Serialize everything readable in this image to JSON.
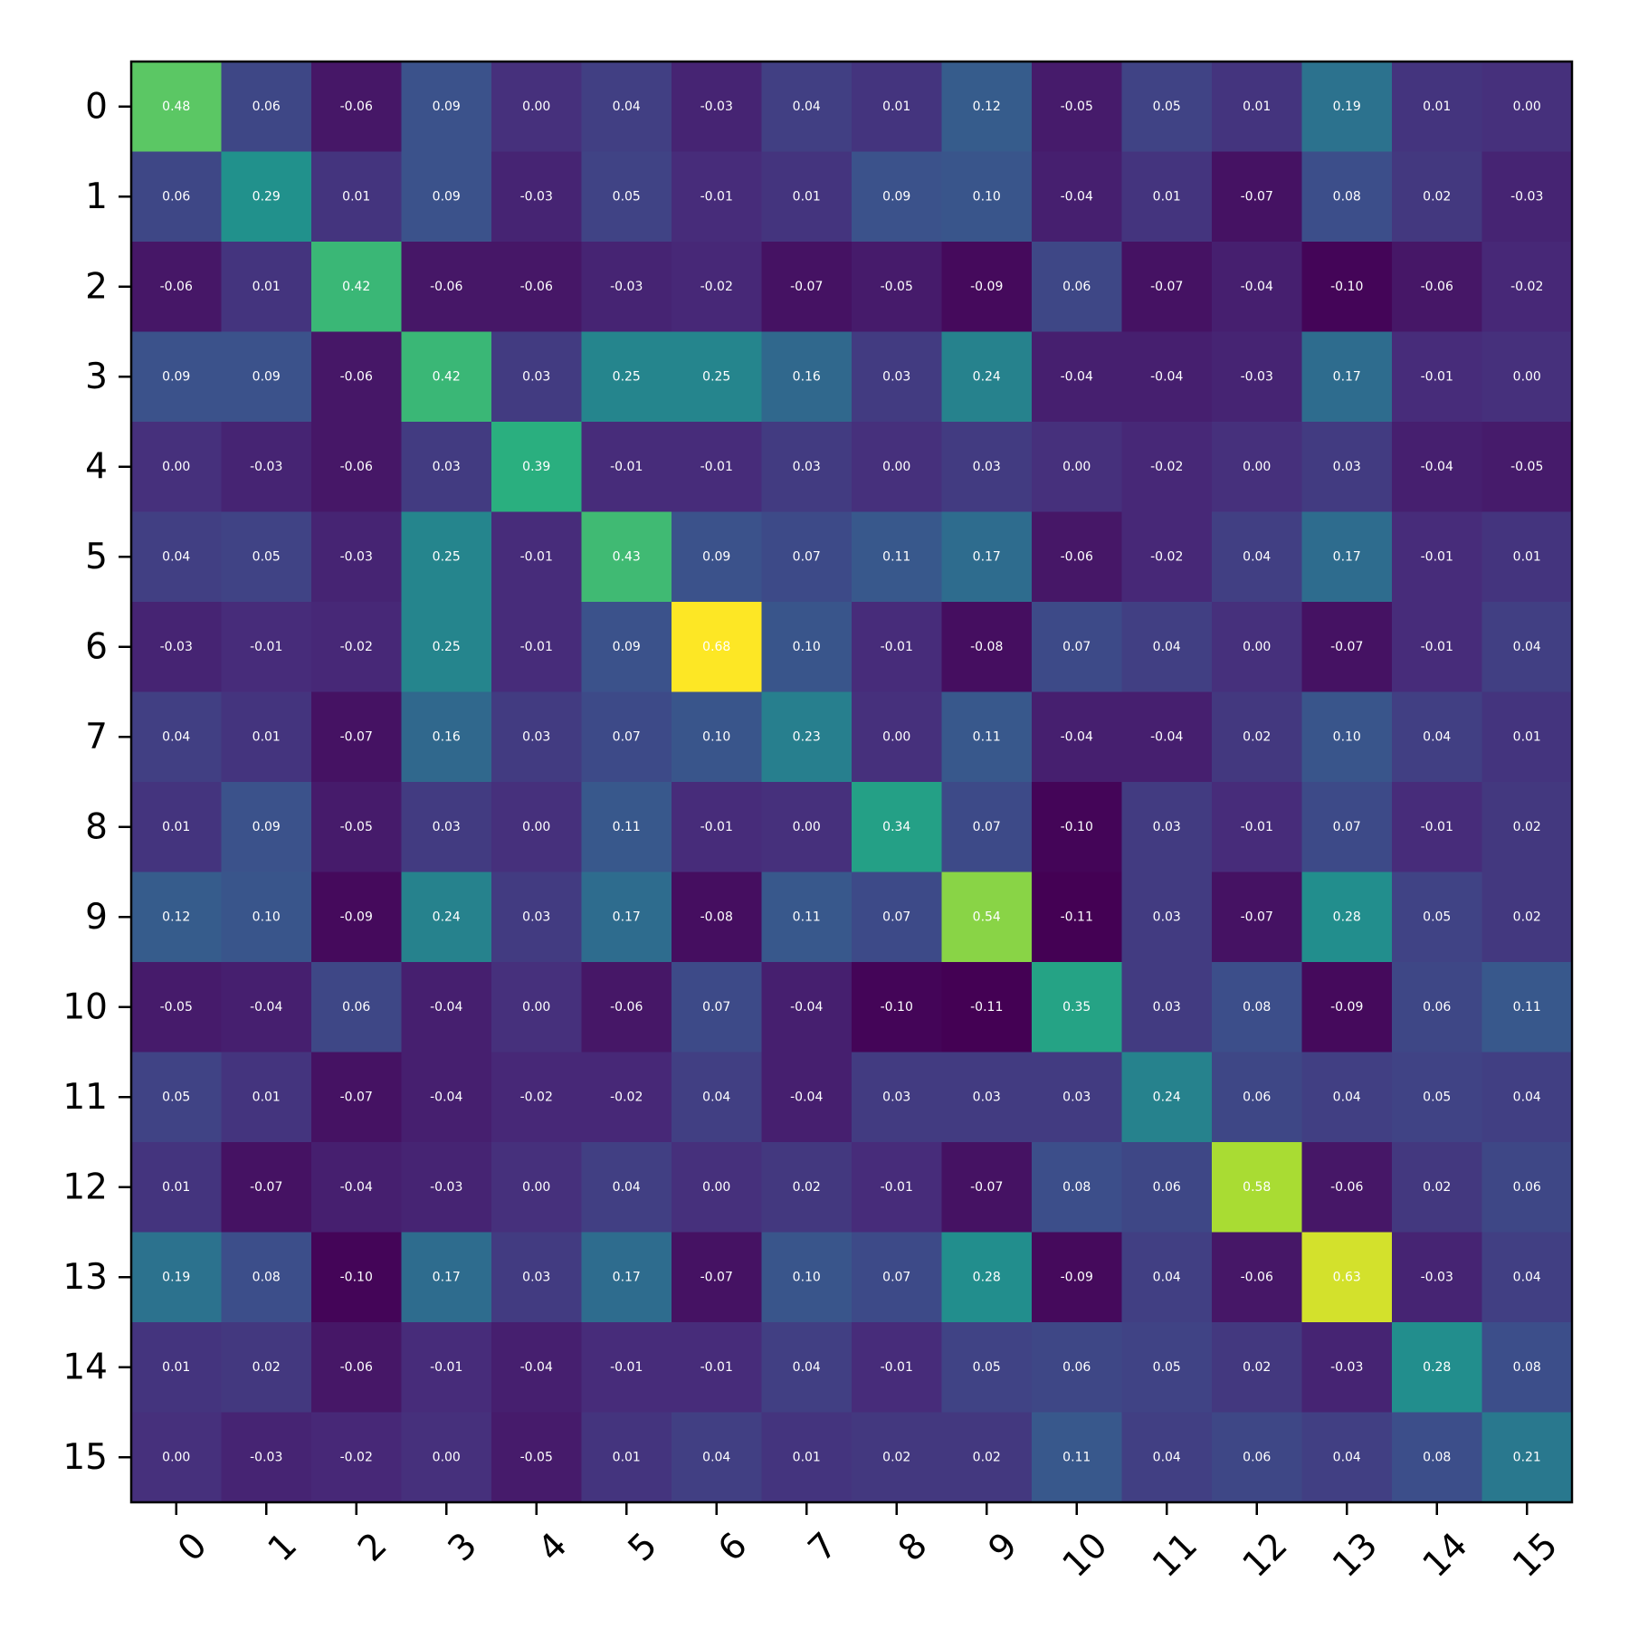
{
  "chart_data": {
    "type": "heatmap",
    "title": "",
    "xlabel": "",
    "ylabel": "",
    "x_tick_labels": [
      "0",
      "1",
      "2",
      "3",
      "4",
      "5",
      "6",
      "7",
      "8",
      "9",
      "10",
      "11",
      "12",
      "13",
      "14",
      "15"
    ],
    "y_tick_labels": [
      "0",
      "1",
      "2",
      "3",
      "4",
      "5",
      "6",
      "7",
      "8",
      "9",
      "10",
      "11",
      "12",
      "13",
      "14",
      "15"
    ],
    "colormap": "viridis",
    "color_range": [
      -0.11,
      0.68
    ],
    "cell_text_color": "#ffffff",
    "x_tick_rotation_deg": 45,
    "matrix": [
      [
        0.48,
        0.06,
        -0.06,
        0.09,
        0.0,
        0.04,
        -0.03,
        0.04,
        0.01,
        0.12,
        -0.05,
        0.05,
        0.01,
        0.19,
        0.01,
        0.0
      ],
      [
        0.06,
        0.29,
        0.01,
        0.09,
        -0.03,
        0.05,
        -0.01,
        0.01,
        0.09,
        0.1,
        -0.04,
        0.01,
        -0.07,
        0.08,
        0.02,
        -0.03
      ],
      [
        -0.06,
        0.01,
        0.42,
        -0.06,
        -0.06,
        -0.03,
        -0.02,
        -0.07,
        -0.05,
        -0.09,
        0.06,
        -0.07,
        -0.04,
        -0.1,
        -0.06,
        -0.02
      ],
      [
        0.09,
        0.09,
        -0.06,
        0.42,
        0.03,
        0.25,
        0.25,
        0.16,
        0.03,
        0.24,
        -0.04,
        -0.04,
        -0.03,
        0.17,
        -0.01,
        -0.0
      ],
      [
        0.0,
        -0.03,
        -0.06,
        0.03,
        0.39,
        -0.01,
        -0.01,
        0.03,
        -0.0,
        0.03,
        0.0,
        -0.02,
        -0.0,
        0.03,
        -0.04,
        -0.05
      ],
      [
        0.04,
        0.05,
        -0.03,
        0.25,
        -0.01,
        0.43,
        0.09,
        0.07,
        0.11,
        0.17,
        -0.06,
        -0.02,
        0.04,
        0.17,
        -0.01,
        0.01
      ],
      [
        -0.03,
        -0.01,
        -0.02,
        0.25,
        -0.01,
        0.09,
        0.68,
        0.1,
        -0.01,
        -0.08,
        0.07,
        0.04,
        0.0,
        -0.07,
        -0.01,
        0.04
      ],
      [
        0.04,
        0.01,
        -0.07,
        0.16,
        0.03,
        0.07,
        0.1,
        0.23,
        0.0,
        0.11,
        -0.04,
        -0.04,
        0.02,
        0.1,
        0.04,
        0.01
      ],
      [
        0.01,
        0.09,
        -0.05,
        0.03,
        -0.0,
        0.11,
        -0.01,
        0.0,
        0.34,
        0.07,
        -0.1,
        0.03,
        -0.01,
        0.07,
        -0.01,
        0.02
      ],
      [
        0.12,
        0.1,
        -0.09,
        0.24,
        0.03,
        0.17,
        -0.08,
        0.11,
        0.07,
        0.54,
        -0.11,
        0.03,
        -0.07,
        0.28,
        0.05,
        0.02
      ],
      [
        -0.05,
        -0.04,
        0.06,
        -0.04,
        0.0,
        -0.06,
        0.07,
        -0.04,
        -0.1,
        -0.11,
        0.35,
        0.03,
        0.08,
        -0.09,
        0.06,
        0.11
      ],
      [
        0.05,
        0.01,
        -0.07,
        -0.04,
        -0.02,
        -0.02,
        0.04,
        -0.04,
        0.03,
        0.03,
        0.03,
        0.24,
        0.06,
        0.04,
        0.05,
        0.04
      ],
      [
        0.01,
        -0.07,
        -0.04,
        -0.03,
        -0.0,
        0.04,
        0.0,
        0.02,
        -0.01,
        -0.07,
        0.08,
        0.06,
        0.58,
        -0.06,
        0.02,
        0.06
      ],
      [
        0.19,
        0.08,
        -0.1,
        0.17,
        0.03,
        0.17,
        -0.07,
        0.1,
        0.07,
        0.28,
        -0.09,
        0.04,
        -0.06,
        0.63,
        -0.03,
        0.04
      ],
      [
        0.01,
        0.02,
        -0.06,
        -0.01,
        -0.04,
        -0.01,
        -0.01,
        0.04,
        -0.01,
        0.05,
        0.06,
        0.05,
        0.02,
        -0.03,
        0.28,
        0.08
      ],
      [
        0.0,
        -0.03,
        -0.02,
        -0.0,
        -0.05,
        0.01,
        0.04,
        0.01,
        0.02,
        0.02,
        0.11,
        0.04,
        0.06,
        0.04,
        0.08,
        0.21
      ]
    ]
  }
}
